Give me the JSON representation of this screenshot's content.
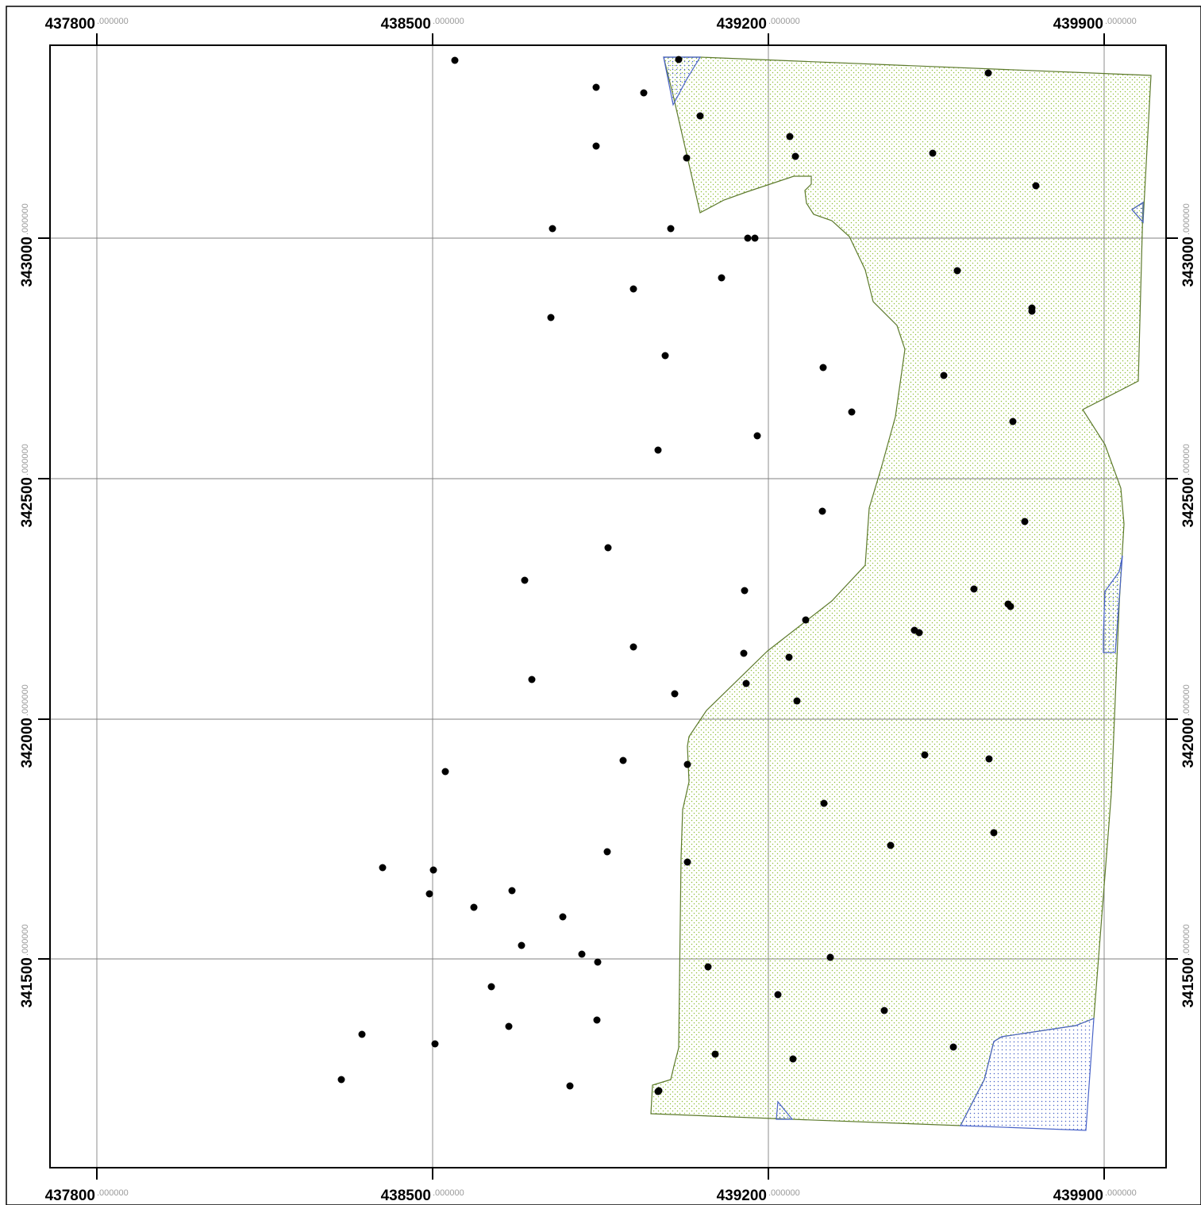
{
  "map": {
    "frame": {
      "x_ticks": [
        {
          "major": "437800",
          "minor": ".000000"
        },
        {
          "major": "438500",
          "minor": ".000000"
        },
        {
          "major": "439200",
          "minor": ".000000"
        },
        {
          "major": "439900",
          "minor": ".000000"
        }
      ],
      "y_ticks": [
        {
          "major": "343000",
          "minor": ".000000"
        },
        {
          "major": "342500",
          "minor": ".000000"
        },
        {
          "major": "342000",
          "minor": ".000000"
        },
        {
          "major": "341500",
          "minor": ".000000"
        }
      ]
    },
    "colors": {
      "background": "#ffffff",
      "frame": "#000000",
      "grid": "#808080",
      "parcel_outline": "#5d7a2c",
      "parcel_fill_dots": "#8fbf3a",
      "blue_outline": "#4a64c8",
      "blue_fill_dots": "#4a64c8",
      "sample_points": "#000000"
    },
    "layers": [
      {
        "name": "parcel",
        "style": "green-stippled-polygon"
      },
      {
        "name": "blue-areas",
        "style": "blue-stippled-polygon"
      },
      {
        "name": "sample-points",
        "style": "black-dots",
        "count": 82
      }
    ]
  }
}
